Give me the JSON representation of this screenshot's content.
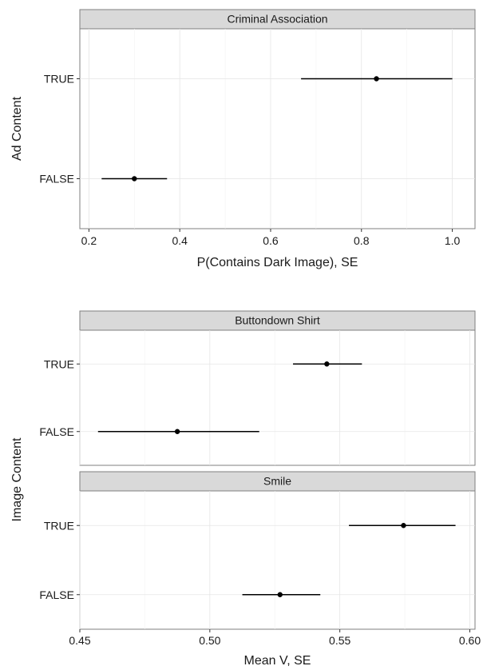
{
  "chart_data": [
    {
      "type": "errorbar",
      "facets": [
        {
          "title": "Criminal Association",
          "categories": [
            "FALSE",
            "TRUE"
          ],
          "estimates": [
            0.3,
            0.833
          ],
          "lower": [
            0.228,
            0.667
          ],
          "upper": [
            0.372,
            1.0
          ]
        }
      ],
      "xlabel": "P(Contains Dark Image), SE",
      "ylabel": "Ad Content",
      "xlim": [
        0.18,
        1.05
      ],
      "xticks": [
        0.2,
        0.4,
        0.6,
        0.8,
        1.0
      ],
      "xtick_labels": [
        "0.2",
        "0.4",
        "0.6",
        "0.8",
        "1.0"
      ],
      "grid": true
    },
    {
      "type": "errorbar",
      "facets": [
        {
          "title": "Buttondown Shirt",
          "categories": [
            "FALSE",
            "TRUE"
          ],
          "estimates": [
            0.4875,
            0.545
          ],
          "lower": [
            0.457,
            0.532
          ],
          "upper": [
            0.519,
            0.5585
          ]
        },
        {
          "title": "Smile",
          "categories": [
            "FALSE",
            "TRUE"
          ],
          "estimates": [
            0.527,
            0.5745
          ],
          "lower": [
            0.5125,
            0.5535
          ],
          "upper": [
            0.5425,
            0.5945
          ]
        }
      ],
      "xlabel": "Mean V, SE",
      "ylabel": "Image Content",
      "xlim": [
        0.45,
        0.602
      ],
      "xticks": [
        0.45,
        0.5,
        0.55,
        0.6
      ],
      "xtick_labels": [
        "0.45",
        "0.50",
        "0.55",
        "0.60"
      ],
      "grid": true
    }
  ]
}
